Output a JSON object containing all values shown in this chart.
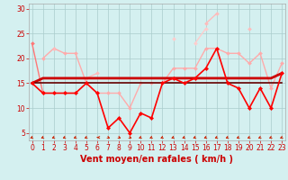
{
  "x": [
    0,
    1,
    2,
    3,
    4,
    5,
    6,
    7,
    8,
    9,
    10,
    11,
    12,
    13,
    14,
    15,
    16,
    17,
    18,
    19,
    20,
    21,
    22,
    23
  ],
  "series": [
    {
      "y": [
        23,
        13,
        null,
        null,
        null,
        null,
        null,
        null,
        null,
        null,
        null,
        null,
        null,
        null,
        null,
        null,
        null,
        null,
        null,
        null,
        null,
        null,
        null,
        null
      ],
      "color": "#ff7777",
      "lw": 1.0,
      "marker": "D",
      "ms": 2.0,
      "zorder": 3
    },
    {
      "y": [
        null,
        20,
        22,
        21,
        21,
        15,
        13,
        13,
        13,
        10,
        15,
        15,
        15,
        18,
        18,
        18,
        22,
        22,
        21,
        21,
        19,
        21,
        14,
        19
      ],
      "color": "#ffaaaa",
      "lw": 1.0,
      "marker": "D",
      "ms": 2.0,
      "zorder": 3
    },
    {
      "y": [
        null,
        null,
        22,
        null,
        null,
        16,
        17,
        null,
        null,
        null,
        null,
        null,
        null,
        null,
        null,
        null,
        27,
        29,
        null,
        null,
        26,
        null,
        null,
        null
      ],
      "color": "#ffbbbb",
      "lw": 1.0,
      "marker": "D",
      "ms": 2.0,
      "zorder": 3
    },
    {
      "y": [
        null,
        null,
        null,
        null,
        null,
        null,
        null,
        null,
        null,
        null,
        null,
        null,
        null,
        24,
        null,
        23,
        26,
        null,
        null,
        null,
        null,
        null,
        null,
        null
      ],
      "color": "#ffcccc",
      "lw": 1.0,
      "marker": "D",
      "ms": 2.0,
      "zorder": 2
    },
    {
      "y": [
        15,
        16,
        16,
        16,
        16,
        16,
        16,
        16,
        16,
        16,
        16,
        16,
        16,
        16,
        16,
        16,
        16,
        16,
        16,
        16,
        16,
        16,
        16,
        17
      ],
      "color": "#cc0000",
      "lw": 2.0,
      "marker": null,
      "ms": 0,
      "zorder": 4
    },
    {
      "y": [
        15,
        13,
        13,
        13,
        13,
        15,
        13,
        6,
        8,
        5,
        9,
        8,
        15,
        16,
        15,
        16,
        18,
        22,
        15,
        14,
        10,
        14,
        10,
        17
      ],
      "color": "#ff0000",
      "lw": 1.2,
      "marker": "D",
      "ms": 2.2,
      "zorder": 5
    },
    {
      "y": [
        15,
        15,
        15,
        15,
        15,
        15,
        15,
        15,
        15,
        15,
        15,
        15,
        15,
        15,
        15,
        15,
        15,
        15,
        15,
        15,
        15,
        15,
        15,
        15
      ],
      "color": "#660000",
      "lw": 1.2,
      "marker": null,
      "ms": 0,
      "zorder": 4
    }
  ],
  "arrow_angles": [
    225,
    225,
    225,
    225,
    225,
    225,
    180,
    315,
    315,
    315,
    225,
    225,
    225,
    225,
    225,
    225,
    225,
    225,
    225,
    225,
    225,
    225,
    225,
    225
  ],
  "arrow_color": "#cc2200",
  "xlim": [
    -0.3,
    23.3
  ],
  "ylim": [
    3.5,
    31
  ],
  "yticks": [
    5,
    10,
    15,
    20,
    25,
    30
  ],
  "xticks": [
    0,
    1,
    2,
    3,
    4,
    5,
    6,
    7,
    8,
    9,
    10,
    11,
    12,
    13,
    14,
    15,
    16,
    17,
    18,
    19,
    20,
    21,
    22,
    23
  ],
  "xlabel": "Vent moyen/en rafales ( km/h )",
  "bg_color": "#d4f0f0",
  "grid_color": "#aacccc",
  "tick_label_color": "#cc0000",
  "axis_label_color": "#cc0000",
  "tick_fontsize": 5.5,
  "xlabel_fontsize": 7.0
}
